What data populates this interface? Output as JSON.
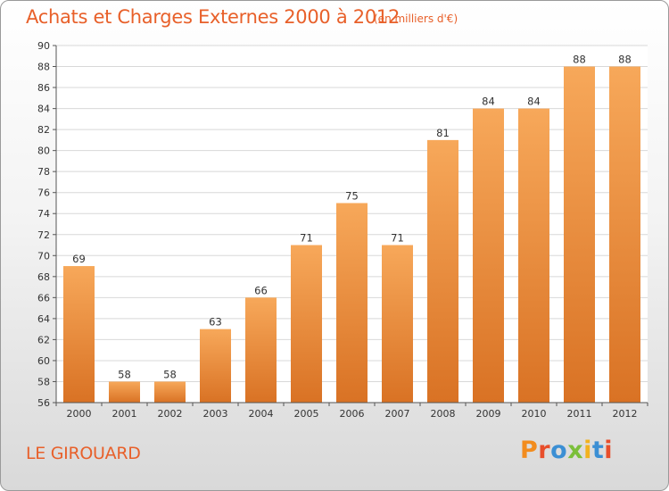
{
  "header": {
    "title": "Achats et Charges Externes 2000 à 2012",
    "unit": "(en milliers d'€)"
  },
  "footer": {
    "commune": "LE GIROUARD",
    "logo_letters": [
      "P",
      "r",
      "o",
      "x",
      "i",
      "t",
      "i"
    ]
  },
  "colors": {
    "title": "#e8602a",
    "bar_top": "#f7a85a",
    "bar_bottom": "#d97224",
    "logo": [
      "#f28c1e",
      "#e84e2b",
      "#3b8fd4",
      "#7bbf3a",
      "#f2b21e",
      "#3b8fd4",
      "#e84e2b"
    ]
  },
  "chart_data": {
    "type": "bar",
    "title": "Achats et Charges Externes 2000 à 2012",
    "subtitle": "(en milliers d'€)",
    "categories": [
      "2000",
      "2001",
      "2002",
      "2003",
      "2004",
      "2005",
      "2006",
      "2007",
      "2008",
      "2009",
      "2010",
      "2011",
      "2012"
    ],
    "values": [
      69,
      58,
      58,
      63,
      66,
      71,
      75,
      71,
      81,
      84,
      84,
      88,
      88
    ],
    "xlabel": "",
    "ylabel": "",
    "ylim": [
      56,
      90
    ],
    "yticks": [
      56,
      58,
      60,
      62,
      64,
      66,
      68,
      70,
      72,
      74,
      76,
      78,
      80,
      82,
      84,
      86,
      88,
      90
    ],
    "grid": true,
    "legend": "none"
  }
}
